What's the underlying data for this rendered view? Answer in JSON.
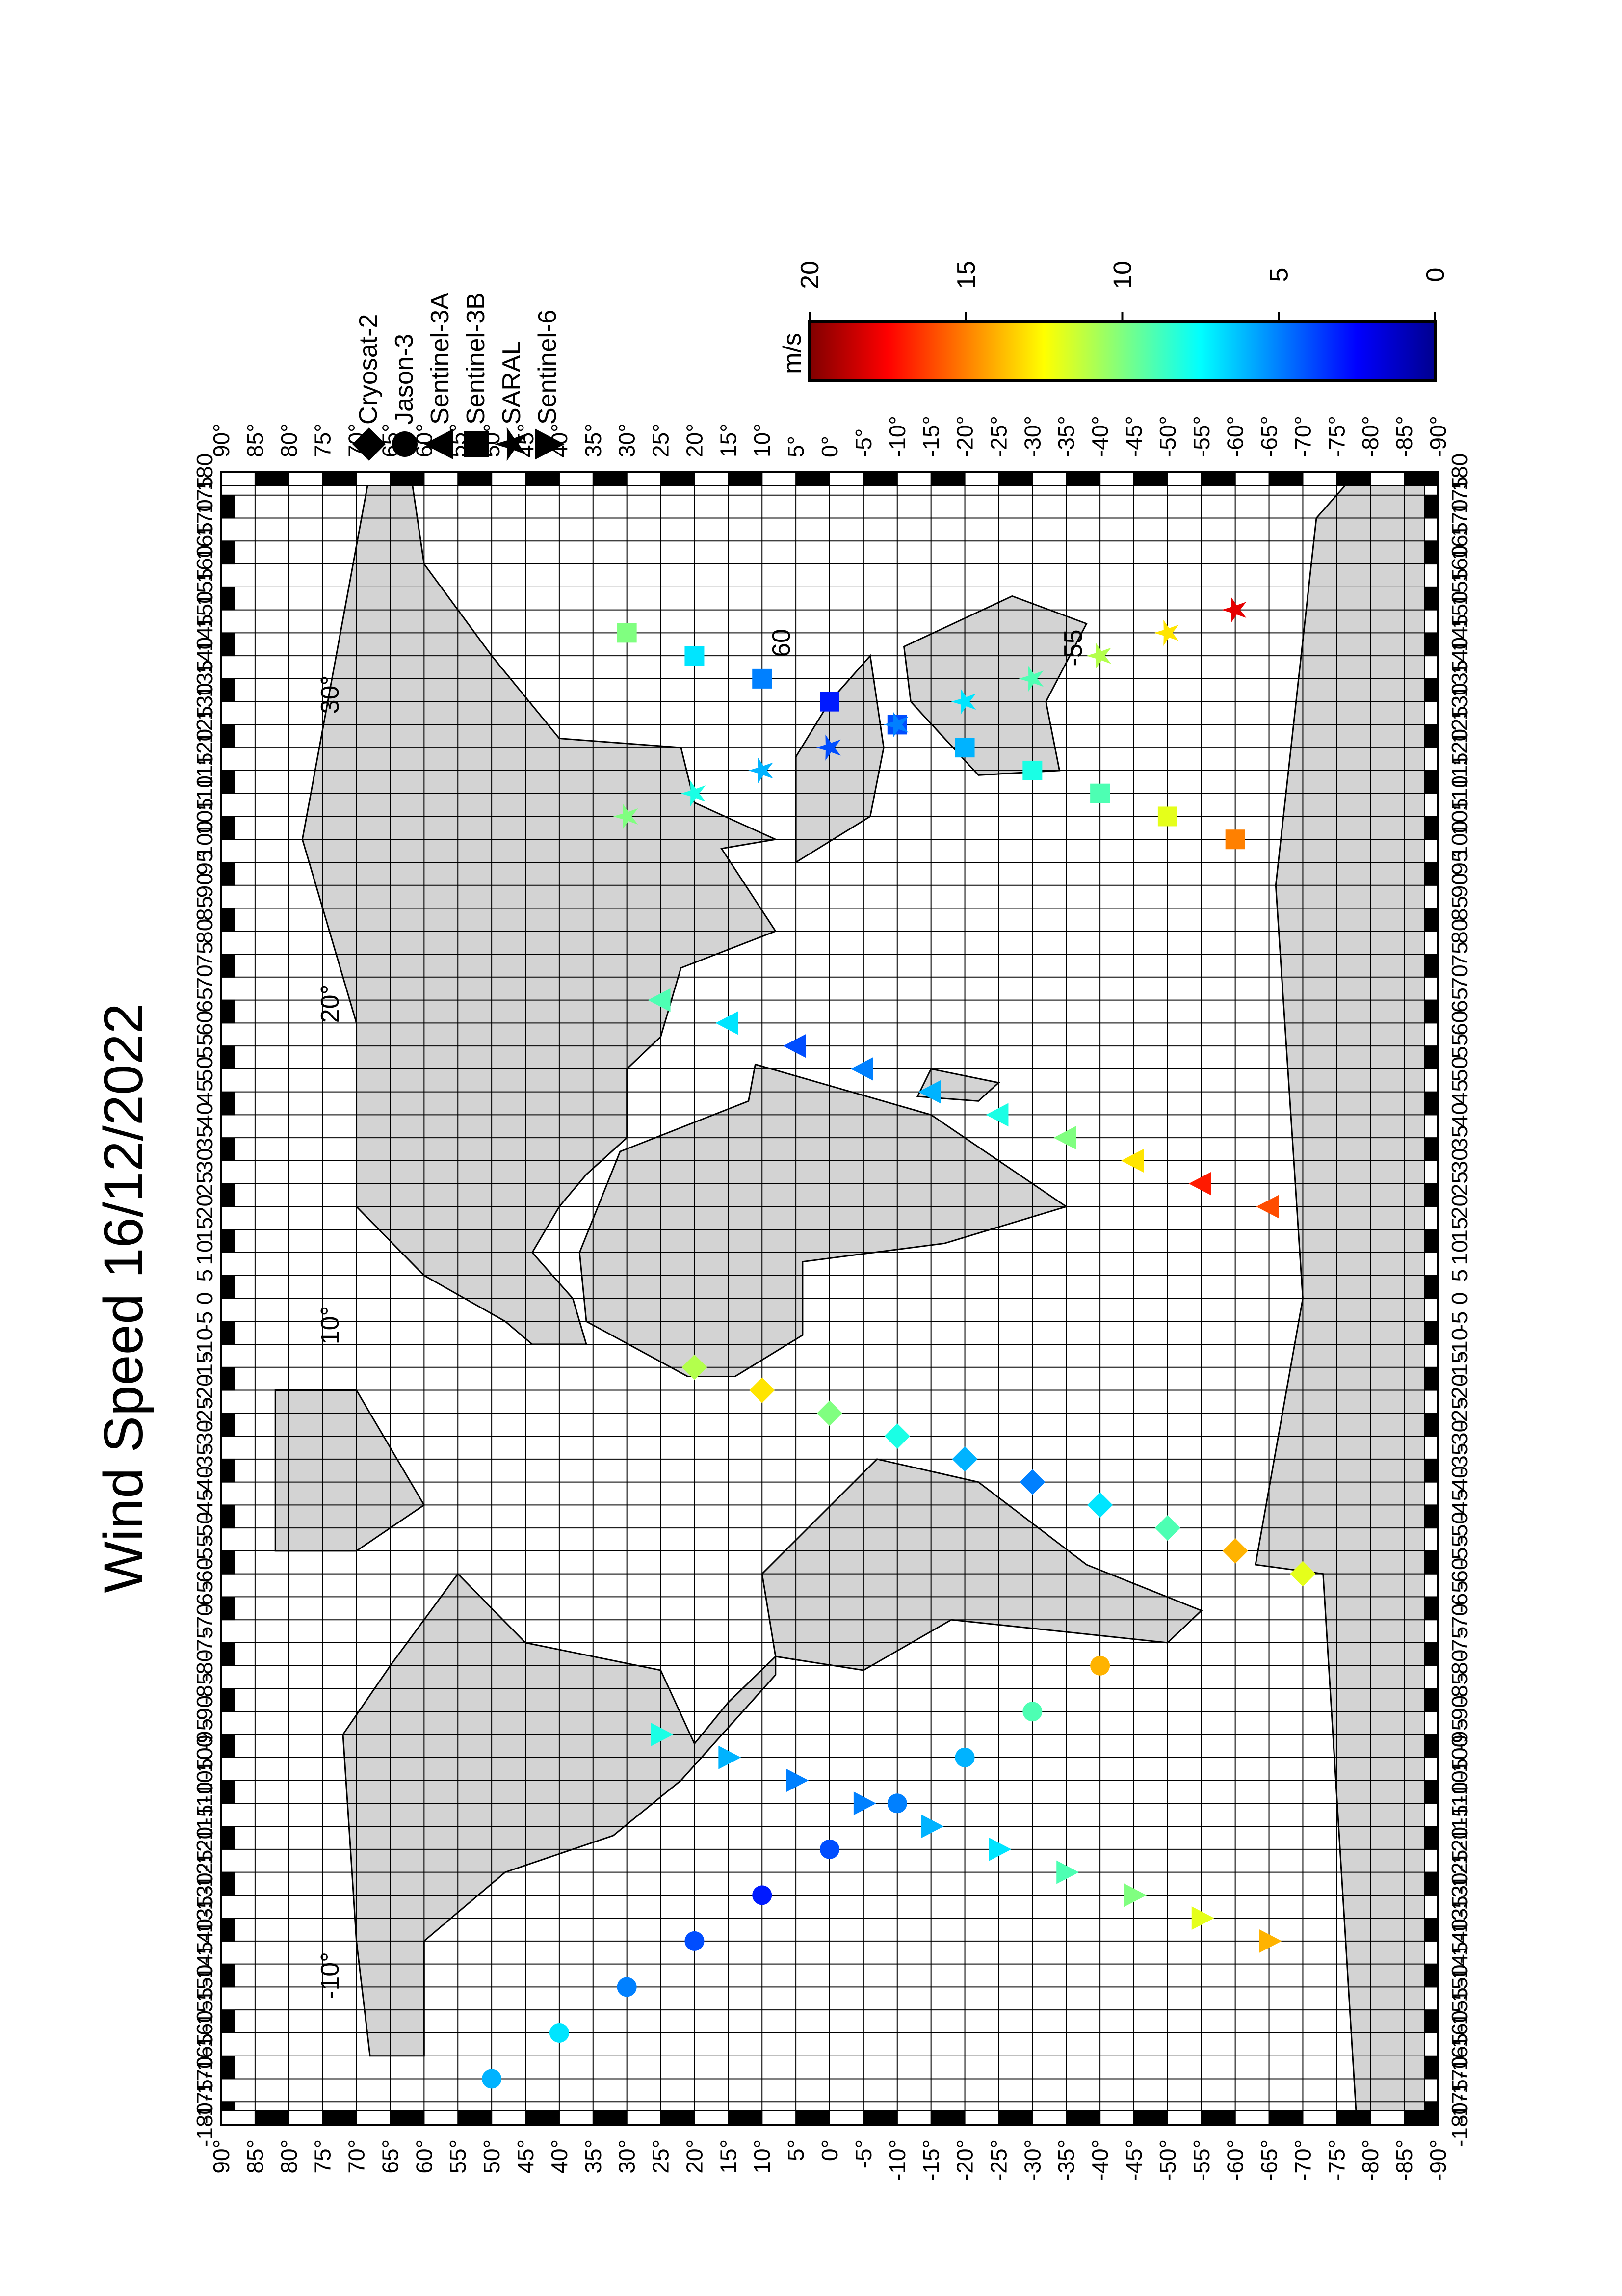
{
  "chart_data": {
    "type": "scatter",
    "title": "Wind Speed 16/12/2022",
    "xlim": [
      -180,
      180
    ],
    "ylim": [
      -90,
      90
    ],
    "xticks": [
      -180,
      -175,
      -170,
      -165,
      -160,
      -155,
      -150,
      -145,
      -140,
      -135,
      -130,
      -125,
      -120,
      -115,
      -110,
      -105,
      -100,
      -95,
      -90,
      -85,
      -80,
      -75,
      -70,
      -65,
      -60,
      -55,
      -50,
      -45,
      -40,
      -35,
      -30,
      -25,
      -20,
      -15,
      -10,
      -5,
      0,
      5,
      10,
      15,
      20,
      25,
      30,
      35,
      40,
      45,
      50,
      55,
      60,
      65,
      70,
      75,
      80,
      85,
      90,
      95,
      100,
      105,
      110,
      115,
      120,
      125,
      130,
      135,
      140,
      145,
      150,
      155,
      160,
      165,
      170,
      175,
      180
    ],
    "yticks": [
      {
        "value": -90,
        "label": "-90°"
      },
      {
        "value": -85,
        "label": "-85°"
      },
      {
        "value": -80,
        "label": "-80°"
      },
      {
        "value": -75,
        "label": "-75°"
      },
      {
        "value": -70,
        "label": "-70°"
      },
      {
        "value": -65,
        "label": "-65°"
      },
      {
        "value": -60,
        "label": "-60°"
      },
      {
        "value": -55,
        "label": "-55°"
      },
      {
        "value": -50,
        "label": "-50°"
      },
      {
        "value": -45,
        "label": "-45°"
      },
      {
        "value": -40,
        "label": "-40°"
      },
      {
        "value": -35,
        "label": "-35°"
      },
      {
        "value": -30,
        "label": "-30°"
      },
      {
        "value": -25,
        "label": "-25°"
      },
      {
        "value": -20,
        "label": "-20°"
      },
      {
        "value": -15,
        "label": "-15°"
      },
      {
        "value": -10,
        "label": "-10°"
      },
      {
        "value": -5,
        "label": "-5°"
      },
      {
        "value": 0,
        "label": "0°"
      },
      {
        "value": 5,
        "label": "5°"
      },
      {
        "value": 10,
        "label": "10°"
      },
      {
        "value": 15,
        "label": "15°"
      },
      {
        "value": 20,
        "label": "20°"
      },
      {
        "value": 25,
        "label": "25°"
      },
      {
        "value": 30,
        "label": "30°"
      },
      {
        "value": 35,
        "label": "35°"
      },
      {
        "value": 40,
        "label": "40°"
      },
      {
        "value": 45,
        "label": "45°"
      },
      {
        "value": 50,
        "label": "50°"
      },
      {
        "value": 55,
        "label": "55°"
      },
      {
        "value": 60,
        "label": "60°"
      },
      {
        "value": 65,
        "label": "65°"
      },
      {
        "value": 70,
        "label": "70°"
      },
      {
        "value": 75,
        "label": "75°"
      },
      {
        "value": 80,
        "label": "80°"
      },
      {
        "value": 85,
        "label": "85°"
      },
      {
        "value": 90,
        "label": "90°"
      }
    ],
    "grid": true,
    "colorbar": {
      "label": "m/s",
      "lim": [
        0,
        20
      ],
      "ticks": [
        0,
        5,
        10,
        15,
        20
      ]
    },
    "annotations": [
      "10°",
      "20°",
      "30°",
      "-10°",
      "60",
      "-55"
    ],
    "series": [
      {
        "name": "Cryosat-2",
        "marker": "diamond",
        "x": [
          -60,
          -55,
          -50,
          -45,
          -40,
          -35,
          -30,
          -25,
          -20,
          -15
        ],
        "y": [
          -70,
          -60,
          -50,
          -40,
          -30,
          -20,
          -10,
          0,
          10,
          20
        ],
        "values": [
          12,
          14,
          9,
          7,
          5,
          6,
          8,
          10,
          13,
          11
        ]
      },
      {
        "name": "Jason-3",
        "marker": "circle",
        "x": [
          -170,
          -160,
          -150,
          -140,
          -130,
          -120,
          -110,
          -100,
          -90,
          -80
        ],
        "y": [
          50,
          40,
          30,
          20,
          10,
          0,
          -10,
          -20,
          -30,
          -40
        ],
        "values": [
          6,
          7,
          5,
          4,
          3,
          4,
          5,
          6,
          9,
          14
        ]
      },
      {
        "name": "Sentinel-3A",
        "marker": "triangle-up",
        "x": [
          20,
          25,
          30,
          35,
          40,
          45,
          50,
          55,
          60,
          65
        ],
        "y": [
          -65,
          -55,
          -45,
          -35,
          -25,
          -15,
          -5,
          5,
          15,
          25
        ],
        "values": [
          16,
          17,
          13,
          10,
          8,
          6,
          5,
          4,
          7,
          9
        ]
      },
      {
        "name": "Sentinel-3B",
        "marker": "square",
        "x": [
          100,
          105,
          110,
          115,
          120,
          125,
          130,
          135,
          140,
          145
        ],
        "y": [
          -60,
          -50,
          -40,
          -30,
          -20,
          -10,
          0,
          10,
          20,
          30
        ],
        "values": [
          15,
          12,
          9,
          8,
          6,
          4,
          3,
          5,
          7,
          10
        ]
      },
      {
        "name": "SARAL",
        "marker": "star",
        "x": [
          150,
          145,
          140,
          135,
          130,
          125,
          120,
          115,
          110,
          105
        ],
        "y": [
          -60,
          -50,
          -40,
          -30,
          -20,
          -10,
          0,
          10,
          20,
          30
        ],
        "values": [
          18,
          13,
          11,
          9,
          7,
          5,
          4,
          6,
          8,
          10
        ]
      },
      {
        "name": "Sentinel-6",
        "marker": "triangle-down",
        "x": [
          -140,
          -135,
          -130,
          -125,
          -120,
          -115,
          -110,
          -105,
          -100,
          -95
        ],
        "y": [
          -65,
          -55,
          -45,
          -35,
          -25,
          -15,
          -5,
          5,
          15,
          25
        ],
        "values": [
          14,
          12,
          10,
          9,
          7,
          6,
          5,
          5,
          6,
          8
        ]
      }
    ]
  }
}
